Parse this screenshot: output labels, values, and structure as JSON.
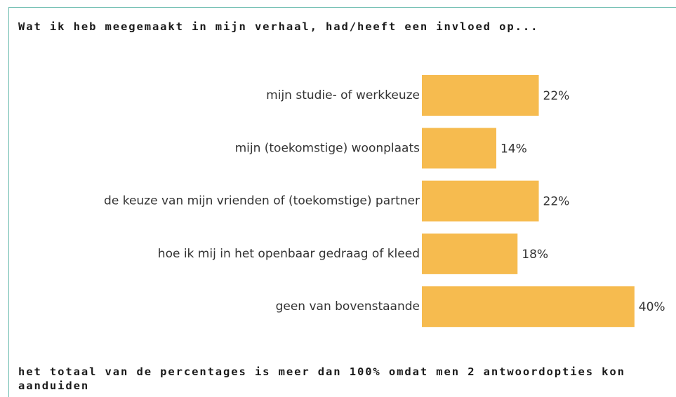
{
  "chart_data": {
    "type": "bar",
    "orientation": "horizontal",
    "title": "Wat ik heb meegemaakt in mijn verhaal, had/heeft een invloed op...",
    "categories": [
      "mijn studie- of werkkeuze",
      "mijn (toekomstige) woonplaats",
      "de keuze van mijn vrienden of (toekomstige) partner",
      "hoe ik mij in het openbaar gedraag of kleed",
      "geen van bovenstaande"
    ],
    "values": [
      22,
      14,
      22,
      18,
      40
    ],
    "value_labels": [
      "22%",
      "14%",
      "22%",
      "18%",
      "40%"
    ],
    "color": "#f6bb4f",
    "footnote": "het totaal van de percentages is meer dan 100% omdat men 2 antwoordopties kon aanduiden"
  }
}
